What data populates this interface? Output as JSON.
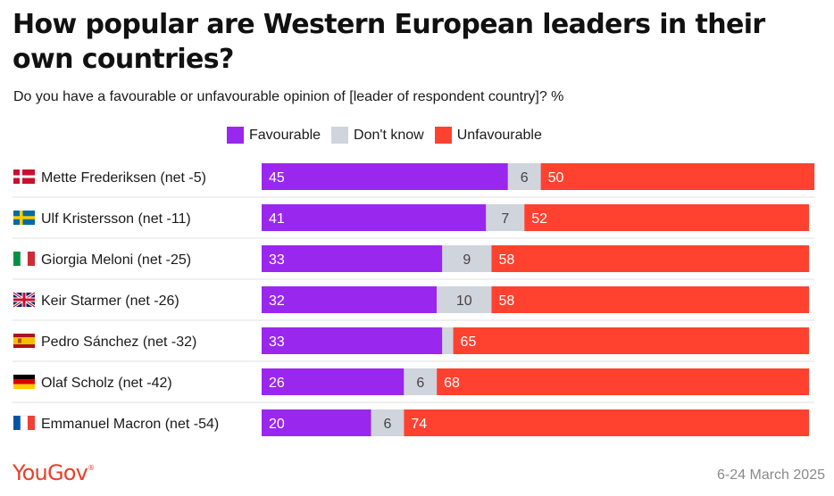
{
  "title": "How popular are Western European leaders in their own countries?",
  "subtitle": "Do you have a favourable or unfavourable opinion of [leader of respondent country]? %",
  "legend": [
    {
      "label": "Favourable",
      "color": "#9a27ee"
    },
    {
      "label": "Don't know",
      "color": "#d0d4dc"
    },
    {
      "label": "Unfavourable",
      "color": "#ff4130"
    }
  ],
  "footer": {
    "brand": "YouGov",
    "date": "6-24 March 2025"
  },
  "chart_data": {
    "type": "bar",
    "orientation": "horizontal",
    "stacked": true,
    "categories": [
      "Mette Frederiksen (net -5)",
      "Ulf Kristersson (net -11)",
      "Giorgia Meloni (net -25)",
      "Keir Starmer (net -26)",
      "Pedro Sánchez (net -32)",
      "Olaf Scholz (net -42)",
      "Emmanuel Macron (net -54)"
    ],
    "flags": [
      "denmark-flag",
      "sweden-flag",
      "italy-flag",
      "uk-flag",
      "spain-flag",
      "germany-flag",
      "france-flag"
    ],
    "series": [
      {
        "name": "Favourable",
        "color": "#9a27ee",
        "values": [
          45,
          41,
          33,
          32,
          33,
          26,
          20
        ]
      },
      {
        "name": "Don't know",
        "color": "#d0d4dc",
        "values": [
          6,
          7,
          9,
          10,
          2,
          6,
          6
        ]
      },
      {
        "name": "Unfavourable",
        "color": "#ff4130",
        "values": [
          50,
          52,
          58,
          58,
          65,
          68,
          74
        ]
      }
    ],
    "data_labels": [
      [
        "45",
        "6",
        "50"
      ],
      [
        "41",
        "7",
        "52"
      ],
      [
        "33",
        "9",
        "58"
      ],
      [
        "32",
        "10",
        "58"
      ],
      [
        "33",
        "",
        "65"
      ],
      [
        "26",
        "6",
        "68"
      ],
      [
        "20",
        "6",
        "74"
      ]
    ],
    "grid": false,
    "legend_position": "top"
  }
}
